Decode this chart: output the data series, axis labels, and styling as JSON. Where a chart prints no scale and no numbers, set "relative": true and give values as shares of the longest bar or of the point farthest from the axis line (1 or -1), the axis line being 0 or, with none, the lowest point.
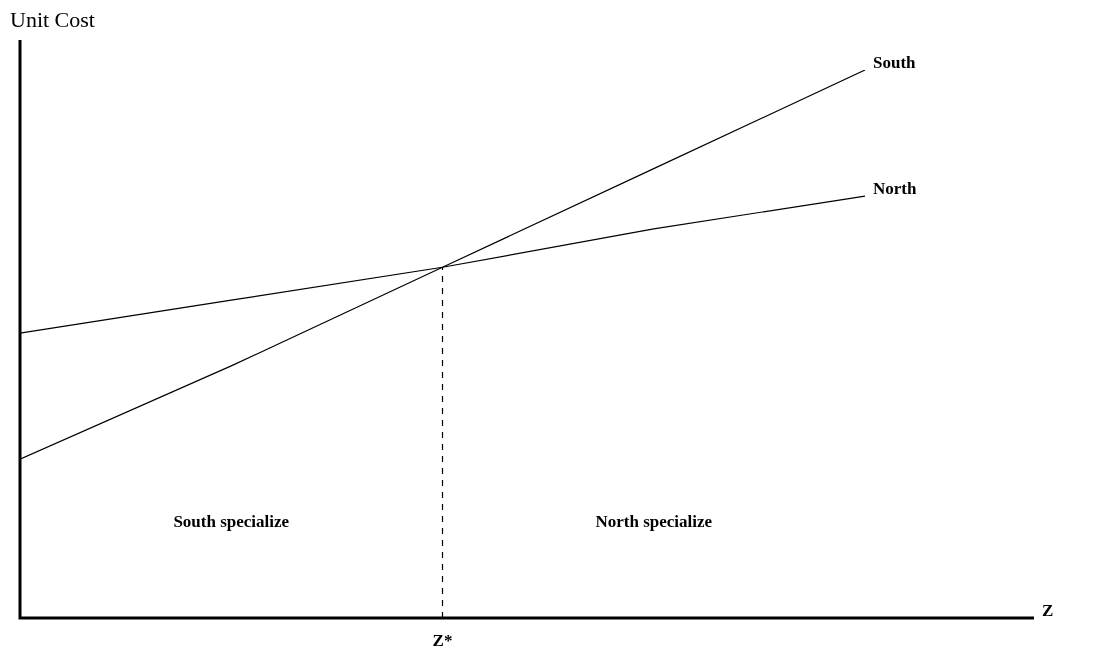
{
  "chart_data": {
    "type": "line",
    "relative": true,
    "ylabel": "Unit Cost",
    "xlabel": "Z",
    "categories": [
      null,
      null,
      null,
      null,
      null
    ],
    "series": [
      {
        "name": "South",
        "color": "#000000",
        "values": [
          0.29,
          0.46,
          0.64,
          0.82,
          1.0
        ]
      },
      {
        "name": "North",
        "color": "#000000",
        "values": [
          0.52,
          0.58,
          0.64,
          0.71,
          0.77
        ]
      }
    ],
    "annotations": [
      "South specialize",
      "North specialize",
      "Z*"
    ],
    "marker": "none",
    "line_style": "solid",
    "legend": false
  }
}
